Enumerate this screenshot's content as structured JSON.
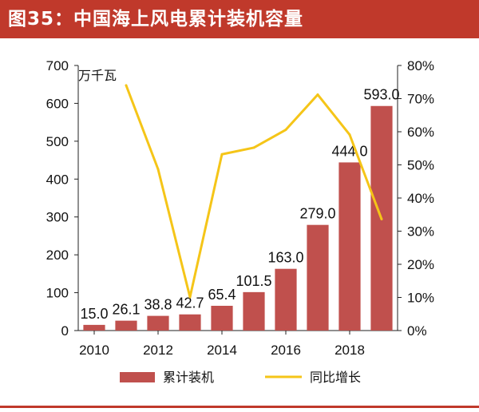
{
  "figure": {
    "title": "图35：中国海上风电累计装机容量"
  },
  "chart_data": {
    "type": "bar",
    "title": "图35：中国海上风电累计装机容量",
    "unit_label": "万千瓦",
    "x": [
      2010,
      2011,
      2012,
      2013,
      2014,
      2015,
      2016,
      2017,
      2018,
      2019
    ],
    "x_tick_labels": [
      "2010",
      "2012",
      "2014",
      "2016",
      "2018"
    ],
    "x_tick_values": [
      2010,
      2012,
      2014,
      2016,
      2018
    ],
    "series": [
      {
        "name": "累计装机",
        "type": "bar",
        "axis": "left",
        "color": "#c0504d",
        "values": [
          15.0,
          26.1,
          38.8,
          42.7,
          65.4,
          101.5,
          163.0,
          279.0,
          444.0,
          593.0
        ],
        "labels": [
          "15.0",
          "26.1",
          "38.8",
          "42.7",
          "65.4",
          "101.5",
          "163.0",
          "279.0",
          "444.0",
          "593.0"
        ]
      },
      {
        "name": "同比增长",
        "type": "line",
        "axis": "right",
        "color": "#f5c518",
        "x": [
          2011,
          2012,
          2013,
          2014,
          2015,
          2016,
          2017,
          2018,
          2019
        ],
        "values": [
          74.0,
          48.7,
          10.1,
          53.2,
          55.2,
          60.6,
          71.2,
          59.1,
          33.6
        ]
      }
    ],
    "y_left": {
      "min": 0,
      "max": 700,
      "ticks": [
        0,
        100,
        200,
        300,
        400,
        500,
        600,
        700
      ],
      "tick_labels": [
        "0",
        "100",
        "200",
        "300",
        "400",
        "500",
        "600",
        "700"
      ]
    },
    "y_right": {
      "min": 0,
      "max": 80,
      "ticks": [
        0,
        10,
        20,
        30,
        40,
        50,
        60,
        70,
        80
      ],
      "tick_labels": [
        "0%",
        "10%",
        "20%",
        "30%",
        "40%",
        "50%",
        "60%",
        "70%",
        "80%"
      ]
    },
    "grid": false,
    "legend_position": "bottom"
  }
}
